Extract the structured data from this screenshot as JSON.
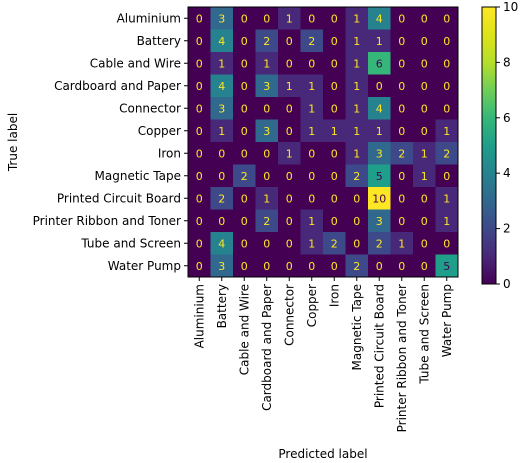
{
  "chart_data": {
    "type": "heatmap",
    "title": "",
    "xlabel": "Predicted label",
    "ylabel": "True label",
    "categories": [
      "Aluminium",
      "Battery",
      "Cable and Wire",
      "Cardboard and Paper",
      "Connector",
      "Copper",
      "Iron",
      "Magnetic Tape",
      "Printed Circuit Board",
      "Printer Ribbon and Toner",
      "Tube and Screen",
      "Water Pump"
    ],
    "matrix": [
      [
        0,
        3,
        0,
        0,
        1,
        0,
        0,
        1,
        4,
        0,
        0,
        0
      ],
      [
        0,
        4,
        0,
        2,
        0,
        2,
        0,
        1,
        1,
        0,
        0,
        0
      ],
      [
        0,
        1,
        0,
        1,
        0,
        0,
        0,
        1,
        6,
        0,
        0,
        0
      ],
      [
        0,
        4,
        0,
        3,
        1,
        1,
        0,
        1,
        0,
        0,
        0,
        0
      ],
      [
        0,
        3,
        0,
        0,
        0,
        1,
        0,
        1,
        4,
        0,
        0,
        0
      ],
      [
        0,
        1,
        0,
        3,
        0,
        1,
        1,
        1,
        1,
        0,
        0,
        1
      ],
      [
        0,
        0,
        0,
        0,
        1,
        0,
        0,
        1,
        3,
        2,
        1,
        2
      ],
      [
        0,
        0,
        2,
        0,
        0,
        0,
        0,
        2,
        5,
        0,
        1,
        0
      ],
      [
        0,
        2,
        0,
        1,
        0,
        0,
        0,
        0,
        10,
        0,
        0,
        1
      ],
      [
        0,
        0,
        0,
        2,
        0,
        1,
        0,
        0,
        3,
        0,
        0,
        1
      ],
      [
        0,
        4,
        0,
        0,
        0,
        1,
        2,
        0,
        2,
        1,
        0,
        0
      ],
      [
        0,
        3,
        0,
        0,
        0,
        0,
        0,
        2,
        0,
        0,
        0,
        5
      ]
    ],
    "colormap": "viridis",
    "vmin": 0,
    "vmax": 10,
    "colorbar_ticks": [
      0,
      2,
      4,
      6,
      8,
      10
    ],
    "colors": {
      "text_dark_cell": "#fde725",
      "text_light_cell": "#440154"
    }
  }
}
